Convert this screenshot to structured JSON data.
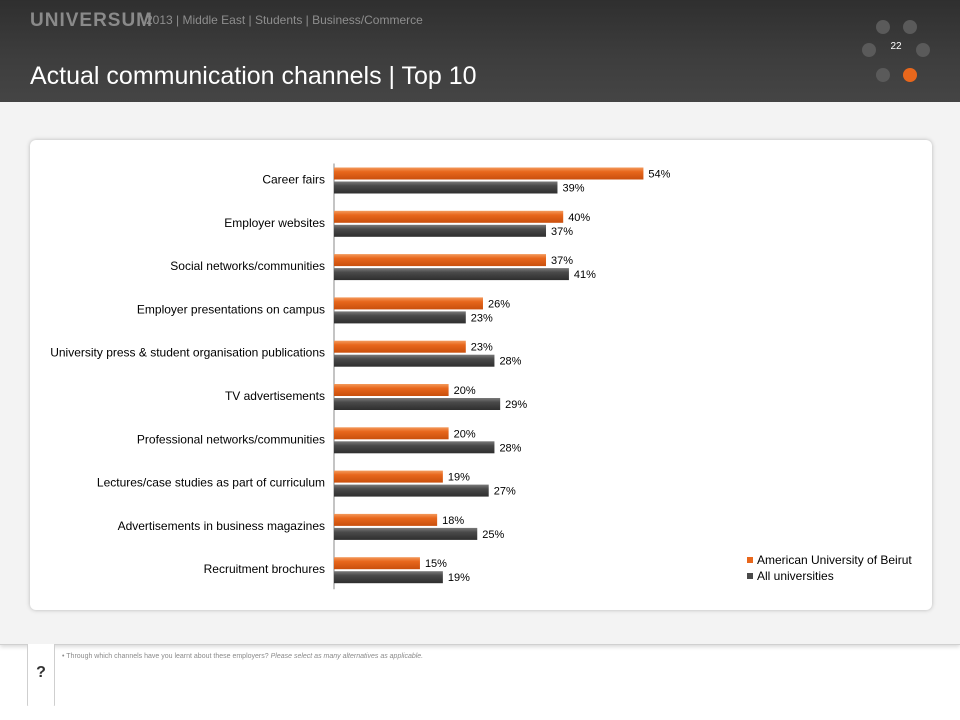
{
  "header": {
    "brand": "UNIVERSUM",
    "breadcrumb": "2013 | Middle East | Students | Business/Commerce",
    "title": "Actual communication channels | Top 10",
    "page_number": "22"
  },
  "footnote": {
    "bullet": "•",
    "question": "Through which channels have you learnt about these employers?",
    "instruction": "Please select as many alternatives as applicable."
  },
  "help_label": "?",
  "colors": {
    "series1": "#e8671c",
    "series2": "#4a4a4a",
    "accent": "#e8671c"
  },
  "chart_data": {
    "type": "bar",
    "orientation": "horizontal",
    "categories": [
      "Career fairs",
      "Employer websites",
      "Social networks/communities",
      "Employer presentations on campus",
      "University press & student organisation publications",
      "TV advertisements",
      "Professional networks/communities",
      "Lectures/case studies as part of curriculum",
      "Advertisements in business magazines",
      "Recruitment brochures"
    ],
    "series": [
      {
        "name": "American University of Beirut",
        "values": [
          54,
          40,
          37,
          26,
          23,
          20,
          20,
          19,
          18,
          15
        ],
        "labels": [
          "54%",
          "40%",
          "37%",
          "26%",
          "23%",
          "20%",
          "20%",
          "19%",
          "18%",
          "15%"
        ]
      },
      {
        "name": "All universities",
        "values": [
          39,
          37,
          41,
          23,
          28,
          29,
          28,
          27,
          25,
          19
        ],
        "labels": [
          "39%",
          "37%",
          "41%",
          "23%",
          "28%",
          "29%",
          "28%",
          "27%",
          "25%",
          "19%"
        ]
      }
    ],
    "xlim": [
      0,
      100
    ],
    "unit": "%",
    "grid": false,
    "legend": "bottom-right"
  }
}
